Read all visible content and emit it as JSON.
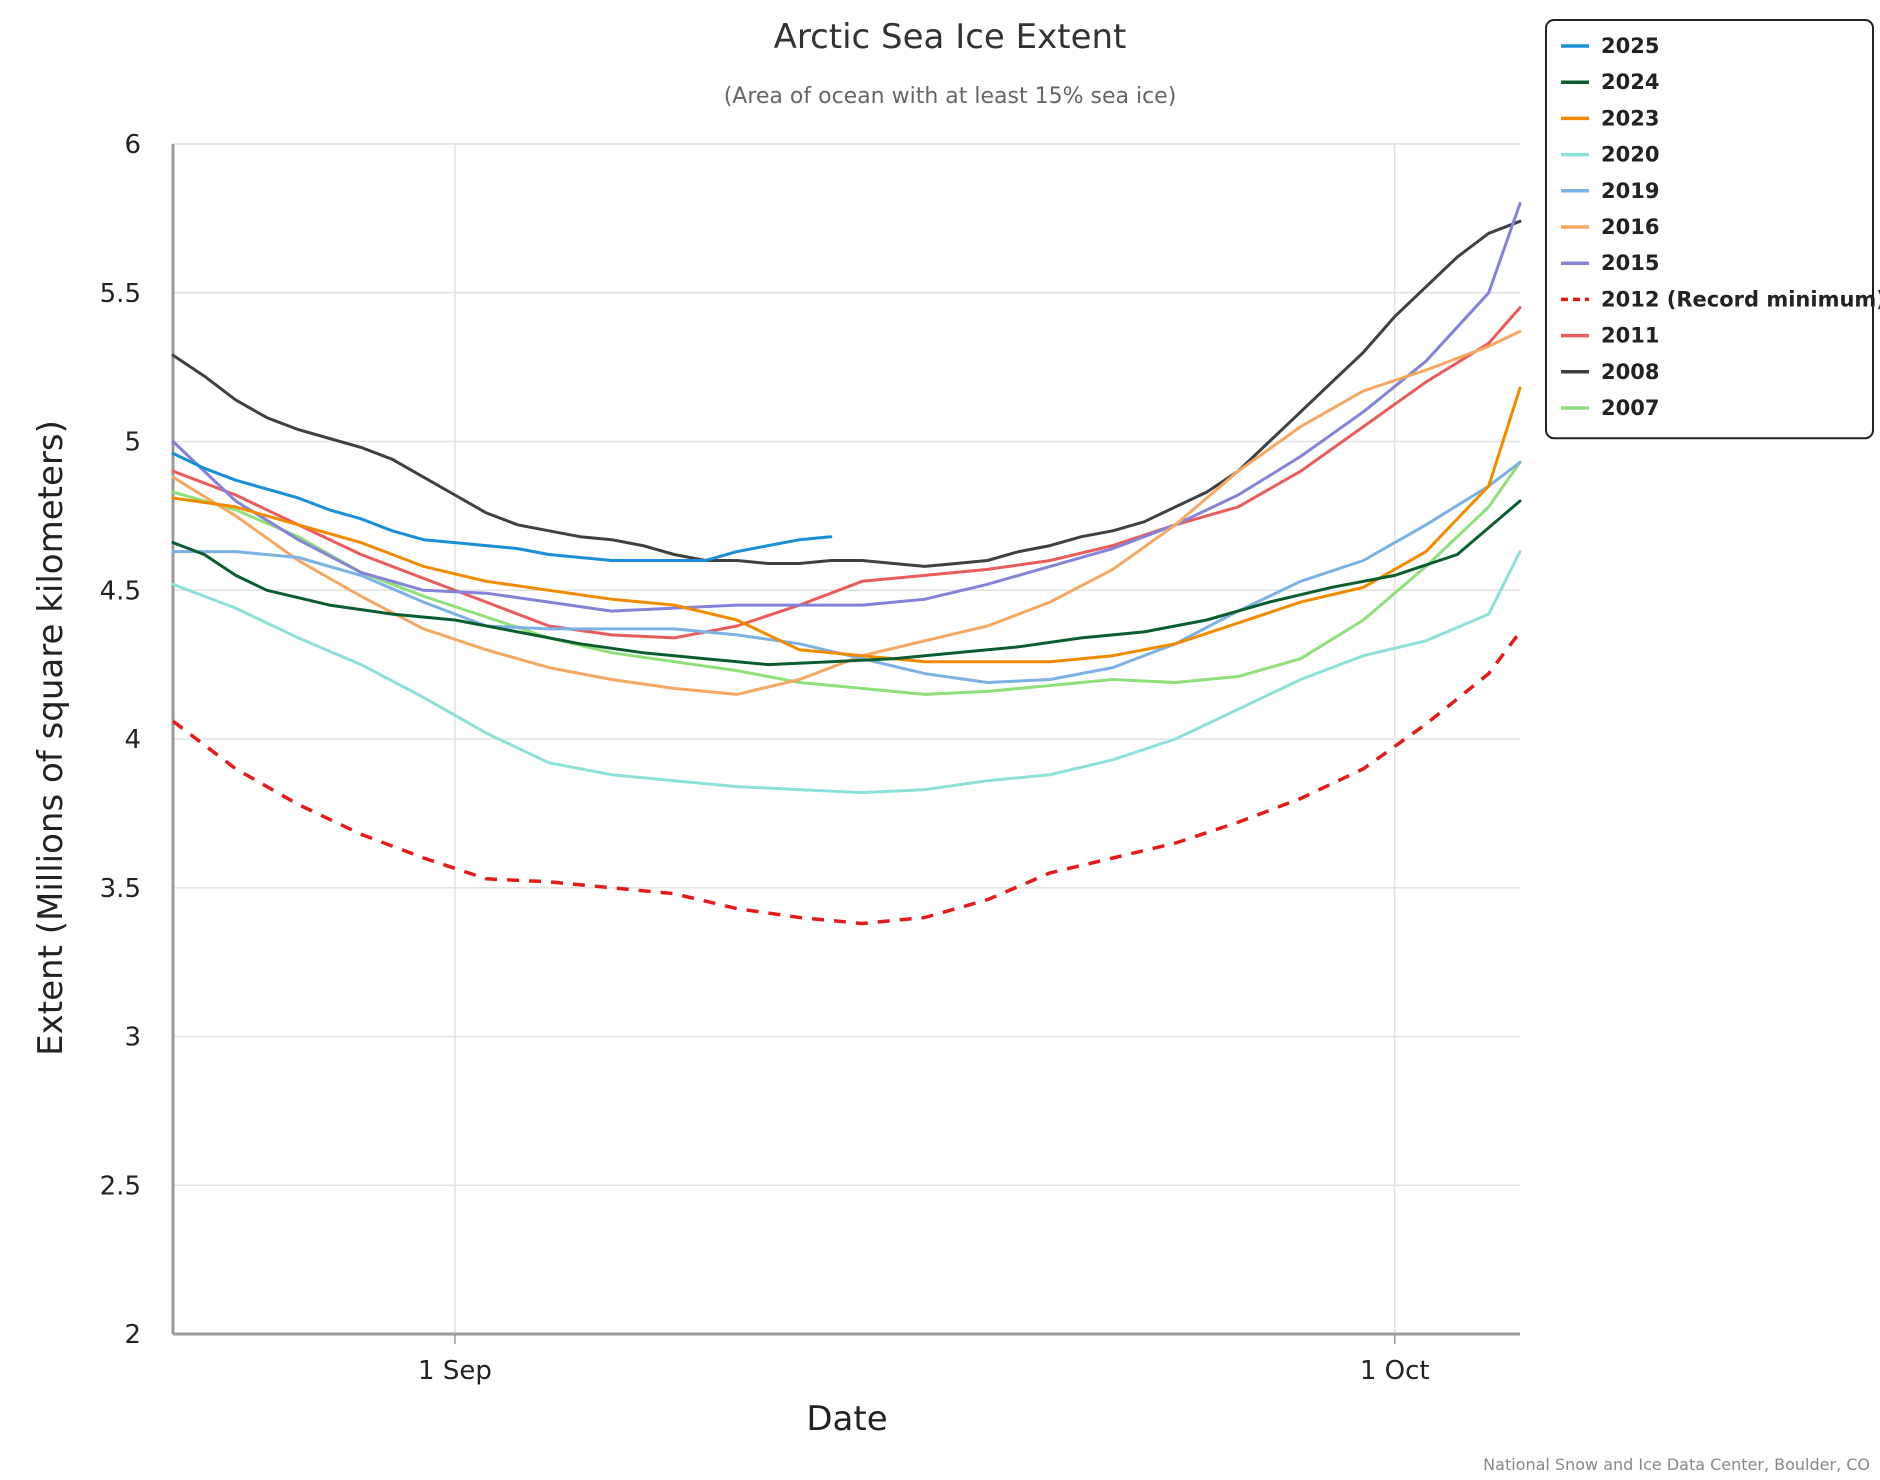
{
  "chart_data": {
    "type": "line",
    "title": "Arctic Sea Ice Extent",
    "subtitle": "(Area of ocean with at least 15% sea ice)",
    "xlabel": "Date",
    "ylabel": "Extent (Millions of square kilometers)",
    "credit": "National Snow and Ice Data Center, Boulder, CO",
    "x_unit": "day of year",
    "xlim": [
      235,
      278
    ],
    "ylim": [
      2,
      6
    ],
    "y_ticks": [
      {
        "value": 6,
        "label": "6"
      },
      {
        "value": 5.5,
        "label": "5.5"
      },
      {
        "value": 5,
        "label": "5"
      },
      {
        "value": 4.5,
        "label": "4.5"
      },
      {
        "value": 4,
        "label": "4"
      },
      {
        "value": 3.5,
        "label": "3.5"
      },
      {
        "value": 3,
        "label": "3"
      },
      {
        "value": 2.5,
        "label": "2.5"
      },
      {
        "value": 2,
        "label": "2"
      }
    ],
    "x_ticks": [
      {
        "value": 244,
        "label": "1 Sep"
      },
      {
        "value": 274,
        "label": "1 Oct"
      }
    ],
    "grid": true,
    "legend_position": "top-right",
    "series": [
      {
        "name": "2025",
        "color": "#1a8fd8",
        "dash": false,
        "x": [
          235,
          236,
          237,
          238,
          239,
          240,
          241,
          242,
          243,
          244,
          245,
          246,
          247,
          248,
          249,
          250,
          251,
          252,
          253,
          254,
          255,
          256
        ],
        "values": [
          4.96,
          4.91,
          4.87,
          4.84,
          4.81,
          4.77,
          4.74,
          4.7,
          4.67,
          4.66,
          4.65,
          4.64,
          4.62,
          4.61,
          4.6,
          4.6,
          4.6,
          4.6,
          4.63,
          4.65,
          4.67,
          4.68
        ]
      },
      {
        "name": "2024",
        "color": "#0b5d2f",
        "dash": false,
        "x": [
          235,
          236,
          237,
          238,
          240,
          242,
          244,
          246,
          248,
          250,
          252,
          254,
          256,
          258,
          260,
          262,
          264,
          266,
          268,
          270,
          272,
          274,
          276,
          278
        ],
        "values": [
          4.66,
          4.62,
          4.55,
          4.5,
          4.45,
          4.42,
          4.4,
          4.36,
          4.32,
          4.29,
          4.27,
          4.25,
          4.26,
          4.27,
          4.29,
          4.31,
          4.34,
          4.36,
          4.4,
          4.46,
          4.51,
          4.55,
          4.62,
          4.8
        ]
      },
      {
        "name": "2023",
        "color": "#f28a00",
        "dash": false,
        "x": [
          235,
          237,
          239,
          241,
          243,
          245,
          247,
          249,
          251,
          253,
          255,
          257,
          259,
          261,
          263,
          265,
          267,
          269,
          271,
          273,
          275,
          277,
          278
        ],
        "values": [
          4.81,
          4.78,
          4.72,
          4.66,
          4.58,
          4.53,
          4.5,
          4.47,
          4.45,
          4.4,
          4.3,
          4.28,
          4.26,
          4.26,
          4.26,
          4.28,
          4.32,
          4.39,
          4.46,
          4.51,
          4.63,
          4.85,
          5.18
        ]
      },
      {
        "name": "2020",
        "color": "#8de0d8",
        "dash": false,
        "x": [
          235,
          237,
          239,
          241,
          243,
          245,
          247,
          249,
          251,
          253,
          255,
          257,
          259,
          261,
          263,
          265,
          267,
          269,
          271,
          273,
          275,
          277,
          278
        ],
        "values": [
          4.52,
          4.44,
          4.34,
          4.25,
          4.14,
          4.02,
          3.92,
          3.88,
          3.86,
          3.84,
          3.83,
          3.82,
          3.83,
          3.86,
          3.88,
          3.93,
          4.0,
          4.1,
          4.2,
          4.28,
          4.33,
          4.42,
          4.63
        ]
      },
      {
        "name": "2019",
        "color": "#7cb1e3",
        "dash": false,
        "x": [
          235,
          237,
          239,
          241,
          243,
          245,
          247,
          249,
          251,
          253,
          255,
          257,
          259,
          261,
          263,
          265,
          267,
          269,
          271,
          273,
          275,
          277,
          278
        ],
        "values": [
          4.63,
          4.63,
          4.61,
          4.55,
          4.46,
          4.38,
          4.37,
          4.37,
          4.37,
          4.35,
          4.32,
          4.27,
          4.22,
          4.19,
          4.2,
          4.24,
          4.32,
          4.43,
          4.53,
          4.6,
          4.72,
          4.85,
          4.93
        ]
      },
      {
        "name": "2016",
        "color": "#f5a864",
        "dash": false,
        "x": [
          235,
          237,
          239,
          241,
          243,
          245,
          247,
          249,
          251,
          253,
          255,
          257,
          259,
          261,
          263,
          265,
          267,
          269,
          271,
          273,
          275,
          277,
          278
        ],
        "values": [
          4.88,
          4.75,
          4.6,
          4.48,
          4.37,
          4.3,
          4.24,
          4.2,
          4.17,
          4.15,
          4.2,
          4.28,
          4.33,
          4.38,
          4.46,
          4.57,
          4.72,
          4.9,
          5.05,
          5.17,
          5.24,
          5.32,
          5.37
        ]
      },
      {
        "name": "2015",
        "color": "#8483d8",
        "dash": false,
        "x": [
          235,
          237,
          239,
          241,
          243,
          245,
          247,
          249,
          251,
          253,
          255,
          257,
          259,
          261,
          263,
          265,
          267,
          269,
          271,
          273,
          275,
          277,
          278
        ],
        "values": [
          5.0,
          4.8,
          4.67,
          4.56,
          4.5,
          4.49,
          4.46,
          4.43,
          4.44,
          4.45,
          4.45,
          4.45,
          4.47,
          4.52,
          4.58,
          4.64,
          4.72,
          4.82,
          4.95,
          5.1,
          5.27,
          5.5,
          5.8
        ]
      },
      {
        "name": "2012 (Record minimum)",
        "color": "#e21b1b",
        "dash": true,
        "x": [
          235,
          237,
          239,
          241,
          243,
          245,
          247,
          249,
          251,
          253,
          255,
          257,
          259,
          261,
          263,
          265,
          267,
          269,
          271,
          273,
          275,
          277,
          278
        ],
        "values": [
          4.06,
          3.9,
          3.78,
          3.68,
          3.6,
          3.53,
          3.52,
          3.5,
          3.48,
          3.43,
          3.4,
          3.38,
          3.4,
          3.46,
          3.55,
          3.6,
          3.65,
          3.72,
          3.8,
          3.9,
          4.05,
          4.22,
          4.36
        ]
      },
      {
        "name": "2011",
        "color": "#e85c5c",
        "dash": false,
        "x": [
          235,
          237,
          239,
          241,
          243,
          245,
          247,
          249,
          251,
          253,
          255,
          257,
          259,
          261,
          263,
          265,
          267,
          269,
          271,
          273,
          275,
          277,
          278
        ],
        "values": [
          4.9,
          4.82,
          4.72,
          4.62,
          4.54,
          4.46,
          4.38,
          4.35,
          4.34,
          4.38,
          4.45,
          4.53,
          4.55,
          4.57,
          4.6,
          4.65,
          4.72,
          4.78,
          4.9,
          5.05,
          5.2,
          5.33,
          5.45
        ]
      },
      {
        "name": "2008",
        "color": "#404040",
        "dash": false,
        "x": [
          235,
          236,
          237,
          238,
          239,
          240,
          241,
          242,
          243,
          244,
          245,
          246,
          247,
          248,
          249,
          250,
          251,
          252,
          253,
          254,
          255,
          256,
          257,
          258,
          259,
          260,
          261,
          262,
          263,
          264,
          265,
          266,
          267,
          268,
          269,
          270,
          271,
          272,
          273,
          274,
          275,
          276,
          277,
          278
        ],
        "values": [
          5.29,
          5.22,
          5.14,
          5.08,
          5.04,
          5.01,
          4.98,
          4.94,
          4.88,
          4.82,
          4.76,
          4.72,
          4.7,
          4.68,
          4.67,
          4.65,
          4.62,
          4.6,
          4.6,
          4.59,
          4.59,
          4.6,
          4.6,
          4.59,
          4.58,
          4.59,
          4.6,
          4.63,
          4.65,
          4.68,
          4.7,
          4.73,
          4.78,
          4.83,
          4.9,
          5.0,
          5.1,
          5.2,
          5.3,
          5.42,
          5.52,
          5.62,
          5.7,
          5.74
        ]
      },
      {
        "name": "2007",
        "color": "#8fe07a",
        "dash": false,
        "x": [
          235,
          237,
          239,
          241,
          243,
          245,
          247,
          249,
          251,
          253,
          255,
          257,
          259,
          261,
          263,
          265,
          267,
          269,
          271,
          273,
          275,
          277,
          278
        ],
        "values": [
          4.83,
          4.77,
          4.68,
          4.56,
          4.48,
          4.41,
          4.34,
          4.29,
          4.26,
          4.23,
          4.19,
          4.17,
          4.15,
          4.16,
          4.18,
          4.2,
          4.19,
          4.21,
          4.27,
          4.4,
          4.58,
          4.78,
          4.93
        ]
      }
    ]
  }
}
